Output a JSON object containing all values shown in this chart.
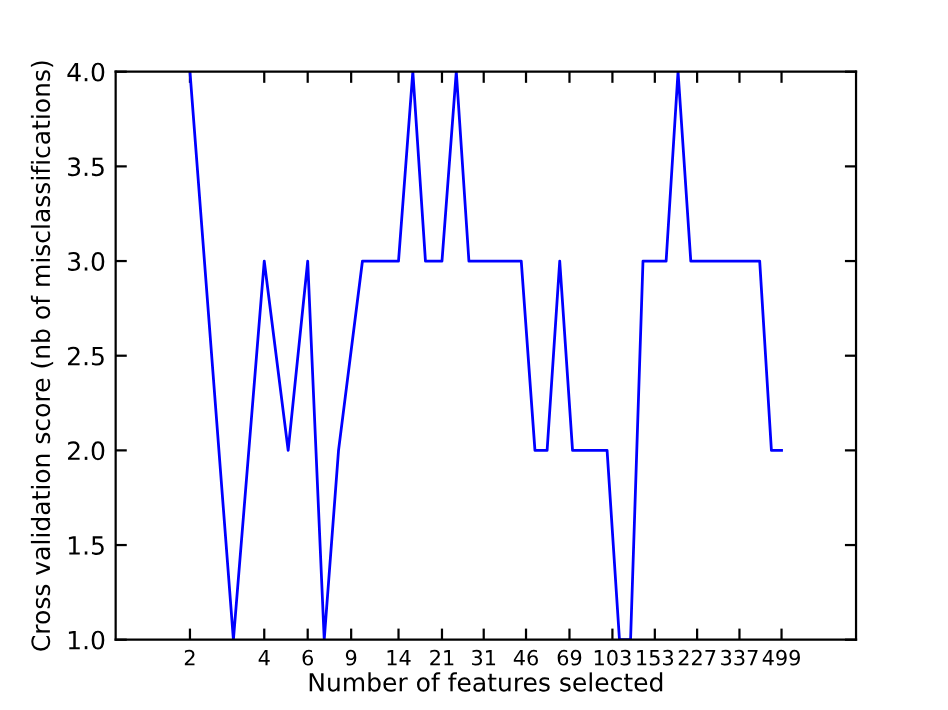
{
  "chart_data": {
    "type": "line",
    "xlabel": "Number of features selected",
    "ylabel": "Cross validation score (nb of misclassifications)",
    "log": "x",
    "xlim": [
      1,
      1000
    ],
    "xticks": [
      2,
      4,
      6,
      9,
      14,
      21,
      31,
      46,
      69,
      103,
      153,
      227,
      337,
      499
    ],
    "ylim": [
      1.0,
      4.0
    ],
    "yticks": [
      {
        "value": 1,
        "label": "1.0"
      },
      {
        "value": 1.5,
        "label": "1.5"
      },
      {
        "value": 2,
        "label": "2.0"
      },
      {
        "value": 2.5,
        "label": "2.5"
      },
      {
        "value": 3,
        "label": "3.0"
      },
      {
        "value": 3.5,
        "label": "3.5"
      },
      {
        "value": 4,
        "label": "4.0"
      }
    ],
    "grid": false,
    "marker": "none",
    "line_style": "solid",
    "series": [
      {
        "color": "#0000ff",
        "x": [
          2,
          3,
          4,
          5,
          6,
          7,
          8,
          10,
          14,
          16,
          18,
          21,
          24,
          27,
          44,
          50,
          56,
          63,
          71,
          98,
          110,
          122,
          137,
          170,
          190,
          214,
          407,
          454,
          499
        ],
        "values": [
          4,
          1,
          3,
          2,
          3,
          1,
          2,
          3,
          3,
          4,
          3,
          3,
          4,
          3,
          3,
          2,
          2,
          3,
          2,
          2,
          1,
          1,
          3,
          3,
          4,
          3,
          3,
          2,
          2
        ]
      }
    ]
  }
}
